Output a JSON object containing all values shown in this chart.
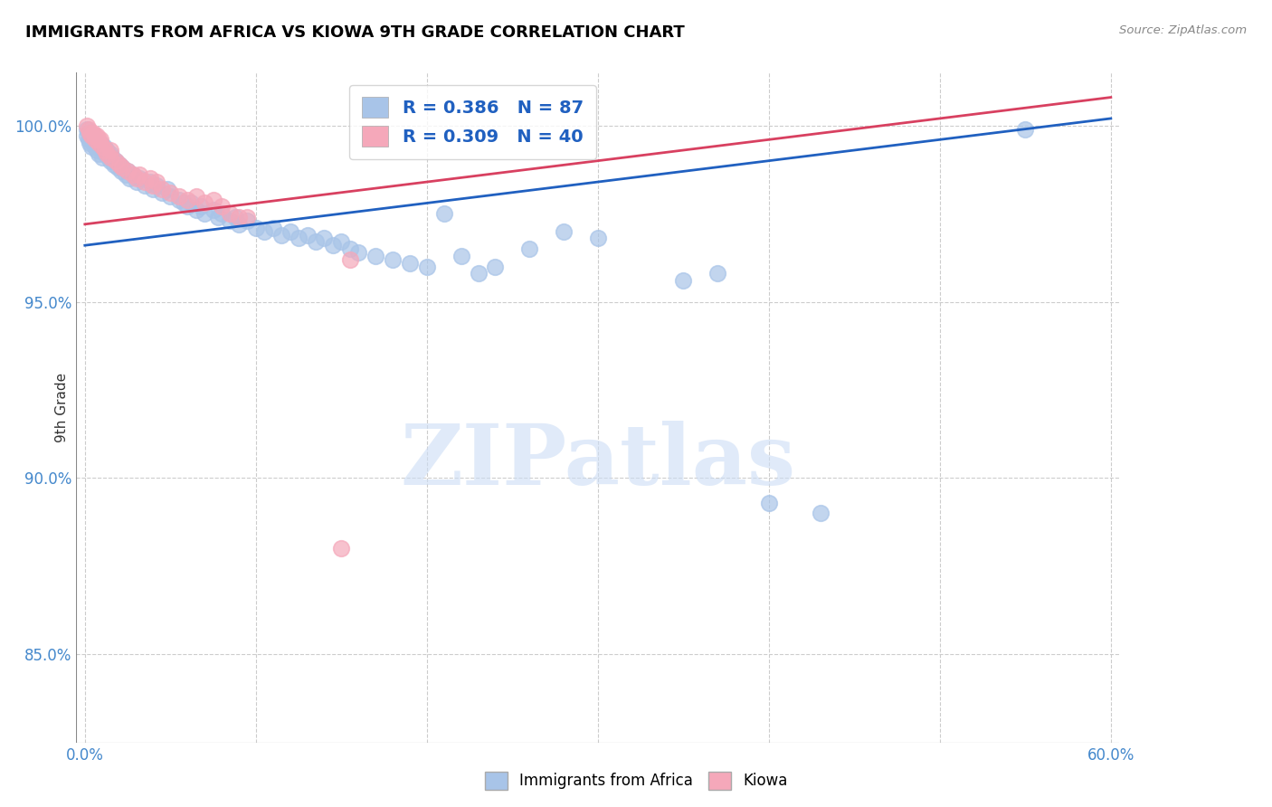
{
  "title": "IMMIGRANTS FROM AFRICA VS KIOWA 9TH GRADE CORRELATION CHART",
  "source": "Source: ZipAtlas.com",
  "xlabel_ticks": [
    "0.0%",
    "",
    "",
    "",
    "",
    "",
    "60.0%"
  ],
  "xlabel_vals": [
    0.0,
    0.1,
    0.2,
    0.3,
    0.4,
    0.5,
    0.6
  ],
  "ylabel": "9th Grade",
  "ylabel_ticks": [
    "85.0%",
    "90.0%",
    "95.0%",
    "100.0%"
  ],
  "ylabel_vals": [
    0.85,
    0.9,
    0.95,
    1.0
  ],
  "xlim": [
    -0.005,
    0.605
  ],
  "ylim": [
    0.825,
    1.015
  ],
  "watermark_text": "ZIPatlas",
  "legend_blue_label": "Immigrants from Africa",
  "legend_pink_label": "Kiowa",
  "blue_R": 0.386,
  "blue_N": 87,
  "pink_R": 0.309,
  "pink_N": 40,
  "blue_color": "#a8c4e8",
  "pink_color": "#f5a8ba",
  "blue_line_color": "#2060c0",
  "pink_line_color": "#d84060",
  "blue_points": [
    [
      0.001,
      0.999
    ],
    [
      0.001,
      0.997
    ],
    [
      0.002,
      0.998
    ],
    [
      0.002,
      0.996
    ],
    [
      0.003,
      0.997
    ],
    [
      0.003,
      0.995
    ],
    [
      0.004,
      0.996
    ],
    [
      0.004,
      0.994
    ],
    [
      0.005,
      0.997
    ],
    [
      0.005,
      0.995
    ],
    [
      0.006,
      0.996
    ],
    [
      0.006,
      0.994
    ],
    [
      0.007,
      0.995
    ],
    [
      0.007,
      0.993
    ],
    [
      0.008,
      0.994
    ],
    [
      0.008,
      0.992
    ],
    [
      0.009,
      0.995
    ],
    [
      0.01,
      0.993
    ],
    [
      0.01,
      0.991
    ],
    [
      0.011,
      0.994
    ],
    [
      0.012,
      0.992
    ],
    [
      0.013,
      0.993
    ],
    [
      0.014,
      0.991
    ],
    [
      0.015,
      0.992
    ],
    [
      0.015,
      0.99
    ],
    [
      0.016,
      0.991
    ],
    [
      0.017,
      0.989
    ],
    [
      0.018,
      0.99
    ],
    [
      0.019,
      0.988
    ],
    [
      0.02,
      0.989
    ],
    [
      0.021,
      0.987
    ],
    [
      0.022,
      0.988
    ],
    [
      0.024,
      0.986
    ],
    [
      0.025,
      0.987
    ],
    [
      0.026,
      0.985
    ],
    [
      0.028,
      0.986
    ],
    [
      0.03,
      0.984
    ],
    [
      0.032,
      0.985
    ],
    [
      0.035,
      0.983
    ],
    [
      0.038,
      0.984
    ],
    [
      0.04,
      0.982
    ],
    [
      0.042,
      0.983
    ],
    [
      0.045,
      0.981
    ],
    [
      0.048,
      0.982
    ],
    [
      0.05,
      0.98
    ],
    [
      0.055,
      0.979
    ],
    [
      0.058,
      0.978
    ],
    [
      0.06,
      0.977
    ],
    [
      0.062,
      0.978
    ],
    [
      0.065,
      0.976
    ],
    [
      0.068,
      0.977
    ],
    [
      0.07,
      0.975
    ],
    [
      0.075,
      0.976
    ],
    [
      0.078,
      0.974
    ],
    [
      0.08,
      0.975
    ],
    [
      0.085,
      0.973
    ],
    [
      0.088,
      0.974
    ],
    [
      0.09,
      0.972
    ],
    [
      0.095,
      0.973
    ],
    [
      0.1,
      0.971
    ],
    [
      0.105,
      0.97
    ],
    [
      0.11,
      0.971
    ],
    [
      0.115,
      0.969
    ],
    [
      0.12,
      0.97
    ],
    [
      0.125,
      0.968
    ],
    [
      0.13,
      0.969
    ],
    [
      0.135,
      0.967
    ],
    [
      0.14,
      0.968
    ],
    [
      0.145,
      0.966
    ],
    [
      0.15,
      0.967
    ],
    [
      0.155,
      0.965
    ],
    [
      0.16,
      0.964
    ],
    [
      0.17,
      0.963
    ],
    [
      0.18,
      0.962
    ],
    [
      0.19,
      0.961
    ],
    [
      0.2,
      0.96
    ],
    [
      0.21,
      0.975
    ],
    [
      0.22,
      0.963
    ],
    [
      0.23,
      0.958
    ],
    [
      0.24,
      0.96
    ],
    [
      0.26,
      0.965
    ],
    [
      0.28,
      0.97
    ],
    [
      0.3,
      0.968
    ],
    [
      0.35,
      0.956
    ],
    [
      0.37,
      0.958
    ],
    [
      0.4,
      0.893
    ],
    [
      0.43,
      0.89
    ],
    [
      0.55,
      0.999
    ]
  ],
  "pink_points": [
    [
      0.001,
      1.0
    ],
    [
      0.002,
      0.999
    ],
    [
      0.003,
      0.998
    ],
    [
      0.004,
      0.997
    ],
    [
      0.005,
      0.998
    ],
    [
      0.006,
      0.997
    ],
    [
      0.006,
      0.996
    ],
    [
      0.007,
      0.997
    ],
    [
      0.008,
      0.996
    ],
    [
      0.008,
      0.995
    ],
    [
      0.009,
      0.996
    ],
    [
      0.01,
      0.994
    ],
    [
      0.012,
      0.993
    ],
    [
      0.013,
      0.992
    ],
    [
      0.015,
      0.991
    ],
    [
      0.015,
      0.993
    ],
    [
      0.018,
      0.99
    ],
    [
      0.02,
      0.989
    ],
    [
      0.022,
      0.988
    ],
    [
      0.025,
      0.987
    ],
    [
      0.028,
      0.986
    ],
    [
      0.03,
      0.985
    ],
    [
      0.032,
      0.986
    ],
    [
      0.035,
      0.984
    ],
    [
      0.038,
      0.985
    ],
    [
      0.04,
      0.983
    ],
    [
      0.042,
      0.984
    ],
    [
      0.045,
      0.982
    ],
    [
      0.05,
      0.981
    ],
    [
      0.055,
      0.98
    ],
    [
      0.06,
      0.979
    ],
    [
      0.065,
      0.98
    ],
    [
      0.07,
      0.978
    ],
    [
      0.075,
      0.979
    ],
    [
      0.08,
      0.977
    ],
    [
      0.085,
      0.975
    ],
    [
      0.09,
      0.974
    ],
    [
      0.095,
      0.974
    ],
    [
      0.15,
      0.88
    ],
    [
      0.155,
      0.962
    ]
  ],
  "blue_trendline_x": [
    0.0,
    0.6
  ],
  "blue_trendline_y": [
    0.966,
    1.002
  ],
  "pink_trendline_x": [
    0.0,
    0.6
  ],
  "pink_trendline_y": [
    0.972,
    1.008
  ]
}
